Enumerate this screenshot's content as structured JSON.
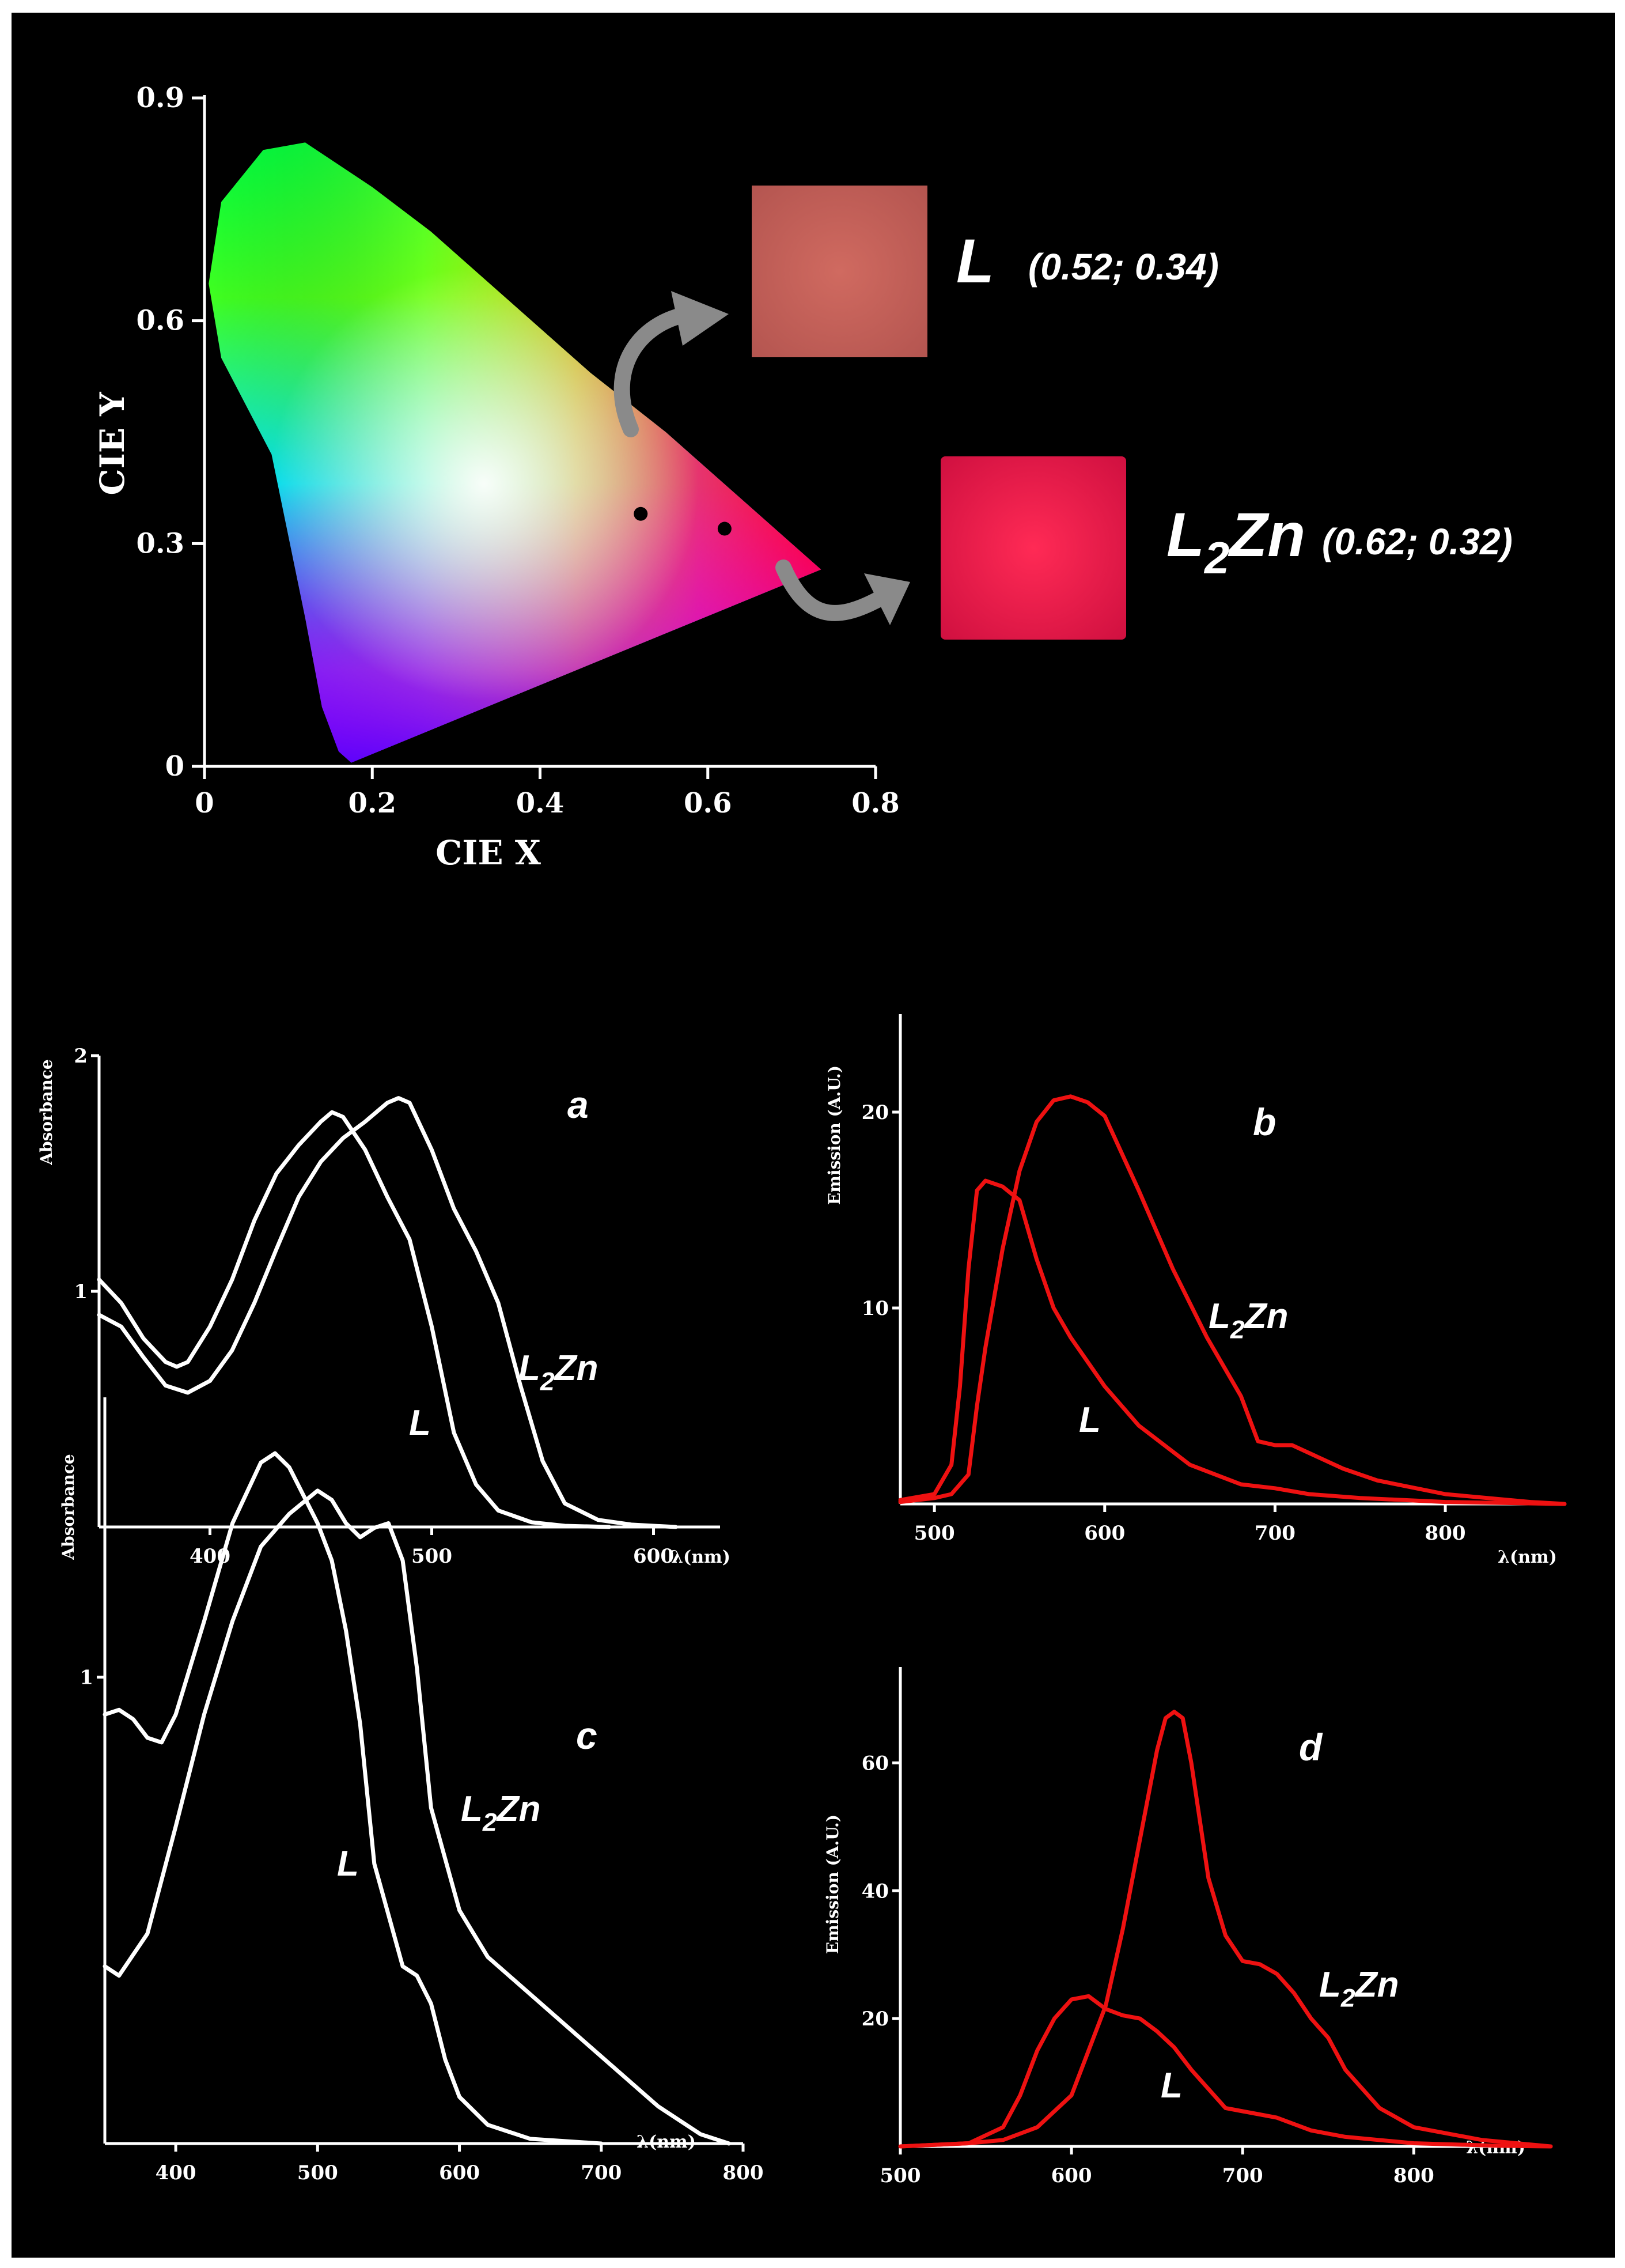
{
  "colors": {
    "background": "#000000",
    "absorbance_curve": "#ffffff",
    "emission_curve": "#ee1111",
    "arrow": "#8a8a8a",
    "sample_L": "#c0605a",
    "sample_L2Zn": "#e6204a"
  },
  "chart_data": [
    {
      "id": "cie",
      "type": "scatter",
      "title": "",
      "xlabel": "CIE X",
      "ylabel": "CIE Y",
      "xlim": [
        0,
        0.8
      ],
      "ylim": [
        0,
        0.9
      ],
      "xticks": [
        "0",
        "0.2",
        "0.4",
        "0.6",
        "0.8"
      ],
      "yticks": [
        "0",
        "0.3",
        "0.6",
        "0.9"
      ],
      "xtick_values": [
        0,
        0.2,
        0.4,
        0.6,
        0.8
      ],
      "ytick_values": [
        0,
        0.3,
        0.6,
        0.9
      ],
      "points": [
        {
          "name": "L",
          "x": 0.52,
          "y": 0.34,
          "coords_label": "(0.52; 0.34)"
        },
        {
          "name": "L2Zn",
          "x": 0.62,
          "y": 0.32,
          "coords_label": "(0.62; 0.32)"
        }
      ],
      "labels": {
        "L": {
          "main": "L",
          "coords": "(0.52; 0.34)"
        },
        "L2Zn": {
          "main": "L",
          "sub": "2",
          "rest": "Zn",
          "coords": "(0.62; 0.32)"
        }
      },
      "locus": [
        [
          0.175,
          0.005
        ],
        [
          0.16,
          0.02
        ],
        [
          0.14,
          0.08
        ],
        [
          0.12,
          0.2
        ],
        [
          0.08,
          0.42
        ],
        [
          0.02,
          0.55
        ],
        [
          0.005,
          0.65
        ],
        [
          0.02,
          0.76
        ],
        [
          0.07,
          0.83
        ],
        [
          0.12,
          0.84
        ],
        [
          0.2,
          0.78
        ],
        [
          0.27,
          0.72
        ],
        [
          0.37,
          0.62
        ],
        [
          0.46,
          0.53
        ],
        [
          0.55,
          0.45
        ],
        [
          0.64,
          0.36
        ],
        [
          0.735,
          0.265
        ]
      ]
    },
    {
      "id": "a",
      "type": "line",
      "panel_letter": "a",
      "xlabel": "λ(nm)",
      "ylabel": "Absorbance",
      "xlim": [
        350,
        630
      ],
      "ylim": [
        0,
        2
      ],
      "xticks": [
        "400",
        "500",
        "600"
      ],
      "xtick_values": [
        400,
        500,
        600
      ],
      "yticks": [
        "1",
        "2"
      ],
      "ytick_values": [
        1,
        2
      ],
      "series": [
        {
          "name": "L",
          "label": {
            "main": "L"
          },
          "x": [
            350,
            360,
            370,
            380,
            385,
            390,
            400,
            410,
            420,
            430,
            440,
            450,
            455,
            460,
            470,
            480,
            490,
            500,
            510,
            520,
            530,
            545,
            560,
            580
          ],
          "y": [
            1.05,
            0.95,
            0.8,
            0.7,
            0.68,
            0.7,
            0.85,
            1.05,
            1.3,
            1.5,
            1.62,
            1.72,
            1.76,
            1.74,
            1.6,
            1.4,
            1.22,
            0.85,
            0.4,
            0.18,
            0.07,
            0.02,
            0.005,
            0
          ]
        },
        {
          "name": "L2Zn",
          "label": {
            "main": "L",
            "sub": "2",
            "rest": "Zn"
          },
          "x": [
            350,
            360,
            370,
            380,
            390,
            400,
            410,
            420,
            430,
            440,
            450,
            460,
            470,
            480,
            485,
            490,
            500,
            510,
            520,
            530,
            540,
            550,
            560,
            575,
            590,
            610
          ],
          "y": [
            0.9,
            0.85,
            0.72,
            0.6,
            0.57,
            0.62,
            0.75,
            0.95,
            1.18,
            1.4,
            1.55,
            1.65,
            1.72,
            1.8,
            1.82,
            1.8,
            1.6,
            1.35,
            1.17,
            0.95,
            0.6,
            0.28,
            0.1,
            0.03,
            0.01,
            0
          ]
        }
      ]
    },
    {
      "id": "b",
      "type": "line",
      "panel_letter": "b",
      "xlabel": "λ(nm)",
      "ylabel": "Emission (A.U.)",
      "xlim": [
        480,
        870
      ],
      "ylim": [
        0,
        25
      ],
      "xticks": [
        "500",
        "600",
        "700",
        "800"
      ],
      "xtick_values": [
        500,
        600,
        700,
        800
      ],
      "yticks": [
        "10",
        "20"
      ],
      "ytick_values": [
        10,
        20
      ],
      "series": [
        {
          "name": "L",
          "label": {
            "main": "L"
          },
          "x": [
            480,
            500,
            510,
            515,
            520,
            525,
            530,
            540,
            550,
            560,
            570,
            580,
            600,
            620,
            650,
            680,
            700,
            720,
            750,
            800,
            870
          ],
          "y": [
            0.2,
            0.5,
            2,
            6,
            12,
            16,
            16.5,
            16.2,
            15.5,
            12.5,
            10,
            8.5,
            6,
            4,
            2,
            1,
            0.8,
            0.5,
            0.3,
            0.1,
            0
          ],
          "color_key": "emission_curve"
        },
        {
          "name": "L2Zn",
          "label": {
            "main": "L",
            "sub": "2",
            "rest": "Zn"
          },
          "x": [
            480,
            500,
            510,
            520,
            525,
            530,
            540,
            550,
            560,
            570,
            580,
            590,
            600,
            620,
            640,
            660,
            680,
            690,
            700,
            710,
            720,
            740,
            760,
            800,
            850,
            870
          ],
          "y": [
            0.1,
            0.3,
            0.5,
            1.5,
            5,
            8,
            13,
            17,
            19.5,
            20.6,
            20.8,
            20.5,
            19.8,
            16,
            12,
            8.5,
            5.5,
            3.2,
            3,
            3,
            2.6,
            1.8,
            1.2,
            0.5,
            0.1,
            0
          ],
          "color_key": "emission_curve"
        }
      ]
    },
    {
      "id": "c",
      "type": "line",
      "panel_letter": "c",
      "xlabel": "λ(nm)",
      "ylabel": "Absorbance",
      "xlim": [
        350,
        800
      ],
      "ylim": [
        0,
        1.6
      ],
      "xticks": [
        "400",
        "500",
        "600",
        "700",
        "800"
      ],
      "xtick_values": [
        400,
        500,
        600,
        700,
        800
      ],
      "yticks": [
        "1"
      ],
      "ytick_values": [
        1
      ],
      "series": [
        {
          "name": "L",
          "label": {
            "main": "L"
          },
          "x": [
            350,
            360,
            370,
            380,
            390,
            400,
            420,
            440,
            460,
            470,
            480,
            500,
            510,
            520,
            530,
            540,
            560,
            570,
            580,
            590,
            600,
            620,
            650,
            700
          ],
          "y": [
            0.92,
            0.93,
            0.91,
            0.87,
            0.86,
            0.92,
            1.12,
            1.33,
            1.46,
            1.48,
            1.45,
            1.33,
            1.25,
            1.1,
            0.9,
            0.6,
            0.38,
            0.36,
            0.3,
            0.18,
            0.1,
            0.04,
            0.01,
            0
          ]
        },
        {
          "name": "L2Zn",
          "label": {
            "main": "L",
            "sub": "2",
            "rest": "Zn"
          },
          "x": [
            350,
            360,
            380,
            400,
            420,
            440,
            460,
            480,
            500,
            510,
            520,
            530,
            540,
            550,
            560,
            570,
            580,
            600,
            620,
            650,
            680,
            710,
            740,
            770,
            790
          ],
          "y": [
            0.38,
            0.36,
            0.45,
            0.68,
            0.92,
            1.12,
            1.28,
            1.35,
            1.4,
            1.38,
            1.33,
            1.3,
            1.32,
            1.33,
            1.25,
            1.02,
            0.72,
            0.5,
            0.4,
            0.32,
            0.24,
            0.16,
            0.08,
            0.02,
            0
          ]
        }
      ]
    },
    {
      "id": "d",
      "type": "line",
      "panel_letter": "d",
      "xlabel": "λ(nm)",
      "ylabel": "Emission (A.U.)",
      "xlim": [
        500,
        880
      ],
      "ylim": [
        0,
        75
      ],
      "xticks": [
        "500",
        "600",
        "700",
        "800"
      ],
      "xtick_values": [
        500,
        600,
        700,
        800
      ],
      "yticks": [
        "20",
        "40",
        "60"
      ],
      "ytick_values": [
        20,
        40,
        60
      ],
      "series": [
        {
          "name": "L",
          "label": {
            "main": "L"
          },
          "x": [
            500,
            540,
            560,
            570,
            580,
            590,
            600,
            610,
            620,
            630,
            640,
            650,
            660,
            670,
            680,
            690,
            700,
            710,
            720,
            740,
            760,
            800,
            850,
            880
          ],
          "y": [
            0,
            0.5,
            3,
            8,
            15,
            20,
            23,
            23.5,
            21.5,
            20.5,
            20,
            18,
            15.5,
            12,
            9,
            6,
            5.5,
            5,
            4.5,
            2.5,
            1.5,
            0.5,
            0.1,
            0
          ],
          "color_key": "emission_curve"
        },
        {
          "name": "L2Zn",
          "label": {
            "main": "L",
            "sub": "2",
            "rest": "Zn"
          },
          "x": [
            500,
            540,
            560,
            580,
            600,
            620,
            630,
            640,
            650,
            655,
            660,
            665,
            670,
            680,
            690,
            700,
            710,
            720,
            730,
            740,
            750,
            760,
            780,
            800,
            840,
            880
          ],
          "y": [
            0,
            0.5,
            1,
            3,
            8,
            22,
            34,
            48,
            62,
            67,
            68,
            67,
            60,
            42,
            33,
            29,
            28.5,
            27,
            24,
            20,
            17,
            12,
            6,
            3,
            1,
            0
          ],
          "color_key": "emission_curve"
        }
      ]
    }
  ]
}
